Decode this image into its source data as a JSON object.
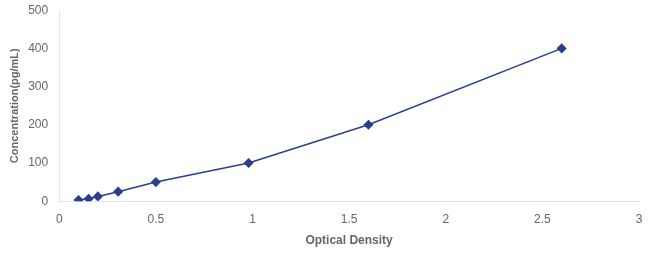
{
  "chart_data": {
    "type": "line",
    "x": [
      0.1,
      0.152,
      0.2,
      0.305,
      0.5,
      0.98,
      1.6,
      2.6
    ],
    "values": [
      3.125,
      6.25,
      12.5,
      25,
      50,
      100,
      200,
      400
    ],
    "color": "#2B3F8C",
    "marker": "diamond",
    "xlabel": "Optical Density",
    "ylabel": "Concentration(pg/mL)",
    "xlim": [
      0,
      3
    ],
    "ylim": [
      0,
      500
    ],
    "xticks": [
      0,
      0.5,
      1,
      1.5,
      2,
      2.5,
      3
    ],
    "yticks": [
      0,
      100,
      200,
      300,
      400,
      500
    ],
    "grid": false
  }
}
